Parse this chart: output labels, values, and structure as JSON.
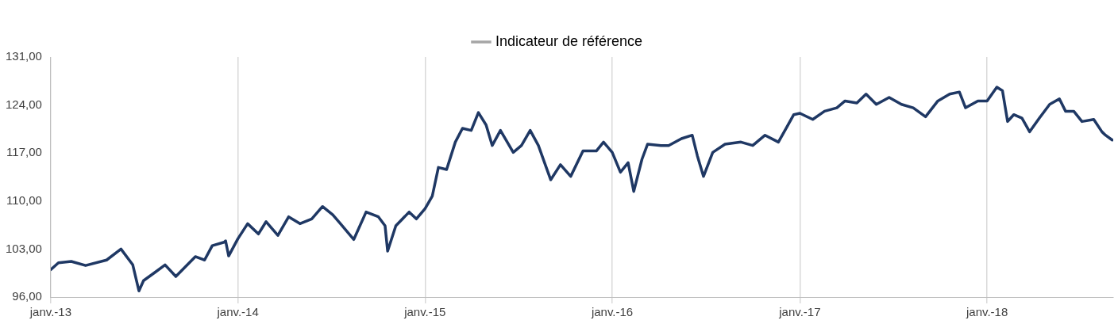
{
  "chart_data": {
    "type": "line",
    "x": [
      "2013-01-01",
      "2013-01-16",
      "2013-02-10",
      "2013-03-10",
      "2013-04-20",
      "2013-05-18",
      "2013-06-10",
      "2013-06-22",
      "2013-07-01",
      "2013-07-25",
      "2013-08-12",
      "2013-09-02",
      "2013-10-10",
      "2013-10-28",
      "2013-11-12",
      "2013-12-05",
      "2013-12-08",
      "2013-12-14",
      "2014-01-01",
      "2014-01-20",
      "2014-02-10",
      "2014-02-25",
      "2014-03-20",
      "2014-04-10",
      "2014-05-02",
      "2014-05-25",
      "2014-06-15",
      "2014-07-05",
      "2014-07-20",
      "2014-08-15",
      "2014-09-08",
      "2014-10-02",
      "2014-10-15",
      "2014-10-20",
      "2014-11-05",
      "2014-12-01",
      "2014-12-15",
      "2015-01-01",
      "2015-01-15",
      "2015-01-27",
      "2015-02-12",
      "2015-03-01",
      "2015-03-15",
      "2015-04-01",
      "2015-04-15",
      "2015-04-30",
      "2015-05-12",
      "2015-05-28",
      "2015-06-22",
      "2015-07-08",
      "2015-07-25",
      "2015-08-10",
      "2015-08-22",
      "2015-09-03",
      "2015-09-22",
      "2015-10-12",
      "2015-11-05",
      "2015-12-01",
      "2015-12-15",
      "2016-01-01",
      "2016-01-17",
      "2016-02-01",
      "2016-02-12",
      "2016-02-28",
      "2016-03-10",
      "2016-04-05",
      "2016-04-20",
      "2016-05-15",
      "2016-06-05",
      "2016-06-15",
      "2016-06-27",
      "2016-07-15",
      "2016-08-08",
      "2016-09-08",
      "2016-10-01",
      "2016-10-25",
      "2016-11-20",
      "2016-12-05",
      "2016-12-20",
      "2017-01-01",
      "2017-01-26",
      "2017-02-18",
      "2017-03-14",
      "2017-03-30",
      "2017-04-22",
      "2017-05-10",
      "2017-05-30",
      "2017-06-24",
      "2017-07-18",
      "2017-08-10",
      "2017-09-03",
      "2017-09-27",
      "2017-10-20",
      "2017-11-08",
      "2017-11-20",
      "2017-12-14",
      "2018-01-01",
      "2018-01-20",
      "2018-01-31",
      "2018-02-10",
      "2018-02-22",
      "2018-03-10",
      "2018-03-25",
      "2018-04-13",
      "2018-05-03",
      "2018-05-22",
      "2018-06-03",
      "2018-06-19",
      "2018-07-05",
      "2018-07-28",
      "2018-08-13",
      "2018-08-20",
      "2018-09-02"
    ],
    "series": [
      {
        "color": "#1f3864",
        "values": [
          100.0,
          101.0,
          101.2,
          100.6,
          101.4,
          103.0,
          100.7,
          96.9,
          98.4,
          99.7,
          100.7,
          99.0,
          101.9,
          101.4,
          103.5,
          104.0,
          104.2,
          102.0,
          104.5,
          106.7,
          105.2,
          107.0,
          105.0,
          107.7,
          106.7,
          107.4,
          109.2,
          108.0,
          106.7,
          104.4,
          108.4,
          107.7,
          106.4,
          102.7,
          106.4,
          108.4,
          107.4,
          108.9,
          110.7,
          114.9,
          114.6,
          118.6,
          120.6,
          120.3,
          122.9,
          121.1,
          118.1,
          120.3,
          117.1,
          118.1,
          120.3,
          118.1,
          115.6,
          113.1,
          115.3,
          113.6,
          117.3,
          117.3,
          118.6,
          117.1,
          114.2,
          115.6,
          111.4,
          116.1,
          118.3,
          118.1,
          118.1,
          119.1,
          119.6,
          116.6,
          113.6,
          117.1,
          118.3,
          118.6,
          118.1,
          119.6,
          118.6,
          120.6,
          122.6,
          122.8,
          121.9,
          123.1,
          123.6,
          124.6,
          124.3,
          125.6,
          124.1,
          125.1,
          124.1,
          123.6,
          122.3,
          124.6,
          125.6,
          125.9,
          123.6,
          124.6,
          124.6,
          126.6,
          126.1,
          121.6,
          122.6,
          122.1,
          120.1,
          122.1,
          124.1,
          124.9,
          123.1,
          123.1,
          121.6,
          121.9,
          120.1,
          119.6,
          118.9
        ]
      },
      {
        "name": "Indicateur de référence",
        "color": "#a6a6a6",
        "values": [
          null,
          null,
          null,
          null,
          null,
          null,
          null,
          null,
          null,
          null,
          null,
          null,
          null,
          null,
          null,
          null,
          null,
          null,
          null,
          null,
          null,
          null,
          null,
          null,
          null,
          null,
          null,
          null,
          null,
          null,
          null,
          null,
          null,
          null,
          null,
          null,
          null,
          null,
          null,
          null,
          null,
          null,
          null,
          null,
          null,
          null,
          null,
          null,
          null,
          null,
          null,
          null,
          null,
          null,
          null,
          null,
          null,
          null,
          null,
          null,
          null,
          null,
          null,
          null,
          null,
          null,
          null,
          null,
          null,
          null,
          null,
          null,
          null,
          null,
          null,
          null,
          null,
          null,
          null,
          null,
          null,
          null,
          null,
          null,
          null,
          null,
          null,
          null,
          null,
          null,
          null,
          null,
          null,
          null,
          null,
          null,
          null,
          null,
          null,
          null,
          null,
          null,
          null,
          null,
          null,
          null,
          null,
          null,
          null,
          null,
          null,
          null,
          null
        ]
      }
    ],
    "xlim": [
      "2013-01-01",
      "2018-09-04"
    ],
    "xticks": [
      {
        "value": "2013-01-01",
        "label": "janv.-13"
      },
      {
        "value": "2014-01-01",
        "label": "janv.-14"
      },
      {
        "value": "2015-01-01",
        "label": "janv.-15"
      },
      {
        "value": "2016-01-01",
        "label": "janv.-16"
      },
      {
        "value": "2017-01-01",
        "label": "janv.-17"
      },
      {
        "value": "2018-01-01",
        "label": "janv.-18"
      }
    ],
    "ylim": [
      96,
      131
    ],
    "yticks": [
      {
        "value": 96,
        "label": "96,00"
      },
      {
        "value": 103,
        "label": "103,00"
      },
      {
        "value": 110,
        "label": "110,00"
      },
      {
        "value": 117,
        "label": "117,00"
      },
      {
        "value": 124,
        "label": "124,00"
      },
      {
        "value": 131,
        "label": "131,00"
      }
    ],
    "grid": "x",
    "legend": "top",
    "marker": "none",
    "line_style": "solid"
  }
}
